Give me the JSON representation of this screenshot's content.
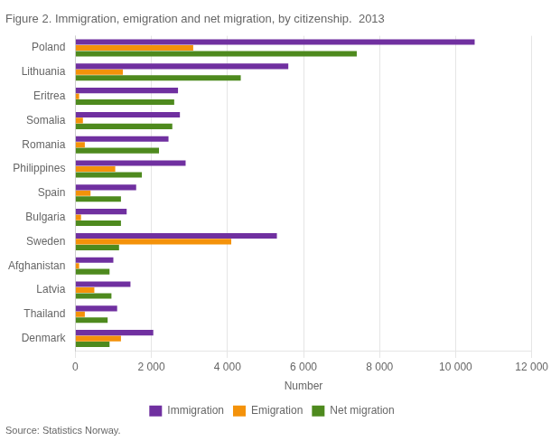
{
  "chart_data": {
    "type": "bar",
    "orientation": "horizontal",
    "title": "Figure 2. Immigration, emigration and net migration, by citizenship.  2013",
    "source": "Source: Statistics Norway.",
    "xlabel": "Number",
    "categories": [
      "Poland",
      "Lithuania",
      "Eritrea",
      "Somalia",
      "Romania",
      "Philippines",
      "Spain",
      "Bulgaria",
      "Sweden",
      "Afghanistan",
      "Latvia",
      "Thailand",
      "Denmark"
    ],
    "series": [
      {
        "name": "Immigration",
        "color": "#7030a0",
        "values": [
          10500,
          5600,
          2700,
          2750,
          2450,
          2900,
          1600,
          1350,
          5300,
          1000,
          1450,
          1100,
          2050
        ]
      },
      {
        "name": "Emigration",
        "color": "#f4920a",
        "values": [
          3100,
          1250,
          100,
          200,
          250,
          1050,
          400,
          150,
          4100,
          100,
          500,
          250,
          1200
        ]
      },
      {
        "name": "Net migration",
        "color": "#4e8a1e",
        "values": [
          7400,
          4350,
          2600,
          2550,
          2200,
          1750,
          1200,
          1200,
          1150,
          900,
          950,
          850,
          900
        ]
      }
    ],
    "xlim": [
      0,
      12000
    ],
    "xticks": [
      0,
      {
        "value": 2000,
        "label": "2 000"
      },
      {
        "value": 4000,
        "label": "4 000"
      },
      {
        "value": 6000,
        "label": "6 000"
      },
      {
        "value": 8000,
        "label": "8 000"
      },
      {
        "value": 10000,
        "label": "10 000"
      },
      {
        "value": 12000,
        "label": "12 000"
      }
    ],
    "grid": true,
    "legend": "bottom"
  }
}
